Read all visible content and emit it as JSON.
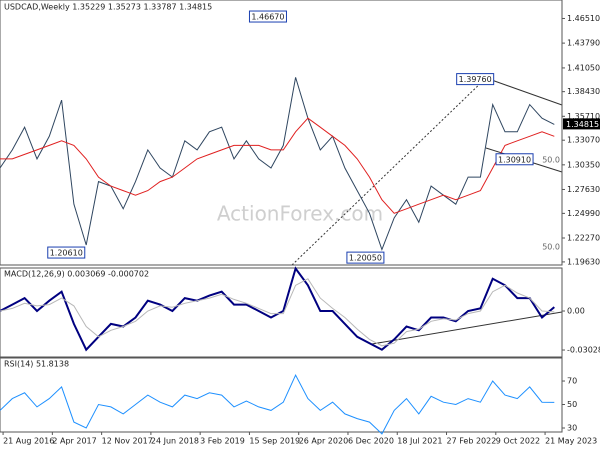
{
  "chart_data": [
    {
      "type": "line",
      "title": "USDCAD,Weekly  1.35229 1.35273 1.33787 1.34815",
      "watermark": "ActionForex.com",
      "x": [
        "2016-08-07",
        "2016-10-02",
        "2016-11-27",
        "2017-01-22",
        "2017-03-19",
        "2017-05-14",
        "2017-07-09",
        "2017-09-03",
        "2017-10-29",
        "2017-12-24",
        "2018-02-18",
        "2018-04-15",
        "2018-06-10",
        "2018-08-05",
        "2018-09-30",
        "2018-11-25",
        "2019-01-20",
        "2019-03-17",
        "2019-05-12",
        "2019-07-07",
        "2019-09-01",
        "2019-10-27",
        "2019-12-22",
        "2020-02-16",
        "2020-04-12",
        "2020-06-07",
        "2020-08-02",
        "2020-09-27",
        "2020-11-22",
        "2021-01-17",
        "2021-03-14",
        "2021-05-09",
        "2021-07-04",
        "2021-08-29",
        "2021-10-24",
        "2021-12-19",
        "2022-02-13",
        "2022-04-10",
        "2022-06-05",
        "2022-07-31",
        "2022-09-25",
        "2022-11-20",
        "2023-01-15",
        "2023-03-12",
        "2023-05-07",
        "2023-07-02"
      ],
      "xlim": [
        "2016-08-07",
        "2023-08-06"
      ],
      "series": [
        {
          "color": "#2f4660",
          "values": [
            1.3,
            1.32,
            1.345,
            1.31,
            1.335,
            1.375,
            1.26,
            1.215,
            1.285,
            1.28,
            1.255,
            1.285,
            1.32,
            1.3,
            1.29,
            1.33,
            1.32,
            1.34,
            1.345,
            1.31,
            1.33,
            1.31,
            1.3,
            1.325,
            1.4,
            1.355,
            1.32,
            1.335,
            1.3,
            1.275,
            1.25,
            1.21,
            1.245,
            1.265,
            1.24,
            1.28,
            1.27,
            1.26,
            1.29,
            1.29,
            1.37,
            1.34,
            1.34,
            1.37,
            1.355,
            1.34815
          ]
        },
        {
          "color": "#e02020",
          "values": [
            1.31,
            1.31,
            1.315,
            1.32,
            1.325,
            1.33,
            1.325,
            1.31,
            1.29,
            1.28,
            1.275,
            1.27,
            1.275,
            1.285,
            1.29,
            1.3,
            1.31,
            1.315,
            1.32,
            1.325,
            1.325,
            1.325,
            1.32,
            1.32,
            1.34,
            1.355,
            1.345,
            1.335,
            1.325,
            1.31,
            1.29,
            1.265,
            1.25,
            1.255,
            1.26,
            1.265,
            1.27,
            1.265,
            1.27,
            1.275,
            1.3,
            1.325,
            1.33,
            1.335,
            1.34,
            1.335
          ]
        }
      ],
      "ylim": [
        1.1929,
        1.4855
      ],
      "yticks": [
        {
          "value": 1.4651,
          "label": "1.46510"
        },
        {
          "value": 1.4379,
          "label": "1.43790"
        },
        {
          "value": 1.4105,
          "label": "1.41050"
        },
        {
          "value": 1.3843,
          "label": "1.38430"
        },
        {
          "value": 1.3571,
          "label": "1.35710"
        },
        {
          "value": 1.3307,
          "label": "1.33070"
        },
        {
          "value": 1.3035,
          "label": "1.30350"
        },
        {
          "value": 1.2763,
          "label": "1.27630"
        },
        {
          "value": 1.2499,
          "label": "1.24990"
        },
        {
          "value": 1.2227,
          "label": "1.22270"
        },
        {
          "value": 1.1963,
          "label": "1.19630"
        }
      ],
      "annotations": [
        {
          "value": 1.4667,
          "label": "1.46670",
          "x": "2020-03-15"
        },
        {
          "value": 1.3976,
          "label": "1.39760",
          "x": "2022-10-13"
        },
        {
          "value": 1.3091,
          "label": "1.30910",
          "x": "2023-04-10"
        },
        {
          "value": 1.2061,
          "label": "1.20610",
          "x": "2017-09-10"
        },
        {
          "value": 1.2005,
          "label": "1.20050",
          "x": "2021-06-01"
        }
      ],
      "fib_labels": [
        {
          "value": 1.3044,
          "label": "50.0"
        },
        {
          "value": 1.2085,
          "label": "50.0"
        }
      ]
    },
    {
      "type": "line",
      "title": "MACD(12,26,9) 0.003069 -0.000702",
      "series": [
        {
          "color": "#000080",
          "values": [
            0.0,
            0.005,
            0.01,
            0.0,
            0.008,
            0.015,
            -0.01,
            -0.03,
            -0.02,
            -0.01,
            -0.012,
            -0.005,
            0.008,
            0.005,
            0.0,
            0.01,
            0.008,
            0.012,
            0.015,
            0.005,
            0.005,
            0.0,
            -0.005,
            0.0,
            0.033,
            0.02,
            0.0,
            0.0,
            -0.01,
            -0.02,
            -0.025,
            -0.03,
            -0.022,
            -0.012,
            -0.015,
            -0.005,
            -0.005,
            -0.008,
            0.0,
            0.002,
            0.025,
            0.02,
            0.01,
            0.01,
            -0.005,
            0.003069
          ]
        },
        {
          "color": "#b8b8b8",
          "values": [
            0.0,
            0.002,
            0.006,
            0.004,
            0.005,
            0.01,
            0.004,
            -0.012,
            -0.02,
            -0.015,
            -0.012,
            -0.008,
            0.0,
            0.004,
            0.003,
            0.006,
            0.008,
            0.01,
            0.013,
            0.009,
            0.006,
            0.002,
            -0.002,
            -0.002,
            0.02,
            0.025,
            0.01,
            0.002,
            -0.005,
            -0.014,
            -0.022,
            -0.027,
            -0.025,
            -0.016,
            -0.014,
            -0.008,
            -0.006,
            -0.007,
            -0.002,
            0.0,
            0.015,
            0.02,
            0.014,
            0.01,
            0.0,
            -0.000702
          ]
        }
      ],
      "ylim": [
        -0.0357,
        0.0334
      ],
      "yticks": [
        {
          "value": 0,
          "label": "0.00"
        },
        -0.030286
      ]
    },
    {
      "type": "line",
      "title": "RSI(14) 51.8138",
      "series": [
        {
          "color": "#1e90ff",
          "values": [
            45,
            55,
            60,
            48,
            55,
            65,
            35,
            30,
            50,
            48,
            42,
            50,
            58,
            52,
            48,
            58,
            55,
            60,
            58,
            48,
            53,
            48,
            45,
            52,
            75,
            55,
            45,
            52,
            42,
            38,
            35,
            25,
            45,
            55,
            42,
            57,
            52,
            50,
            55,
            52,
            70,
            58,
            55,
            65,
            52,
            51.8138
          ]
        }
      ],
      "ylim": [
        26.6,
        89.6
      ],
      "yticks": [
        70,
        50,
        30
      ],
      "xticks": [
        {
          "value": "2016-08-21",
          "label": "21 Aug 2016"
        },
        {
          "value": "2017-04-02",
          "label": "2 Apr 2017"
        },
        {
          "value": "2017-11-12",
          "label": "12 Nov 2017"
        },
        {
          "value": "2018-06-24",
          "label": "24 Jun 2018"
        },
        {
          "value": "2019-02-03",
          "label": "3 Feb 2019"
        },
        {
          "value": "2019-09-15",
          "label": "15 Sep 2019"
        },
        {
          "value": "2020-04-26",
          "label": "26 Apr 2020"
        },
        {
          "value": "2020-12-06",
          "label": "6 Dec 2020"
        },
        {
          "value": "2021-07-18",
          "label": "18 Jul 2021"
        },
        {
          "value": "2022-02-27",
          "label": "27 Feb 2022"
        },
        {
          "value": "2022-10-09",
          "label": "9 Oct 2022"
        },
        {
          "value": "2023-05-21",
          "label": "21 May 2023"
        }
      ]
    }
  ]
}
